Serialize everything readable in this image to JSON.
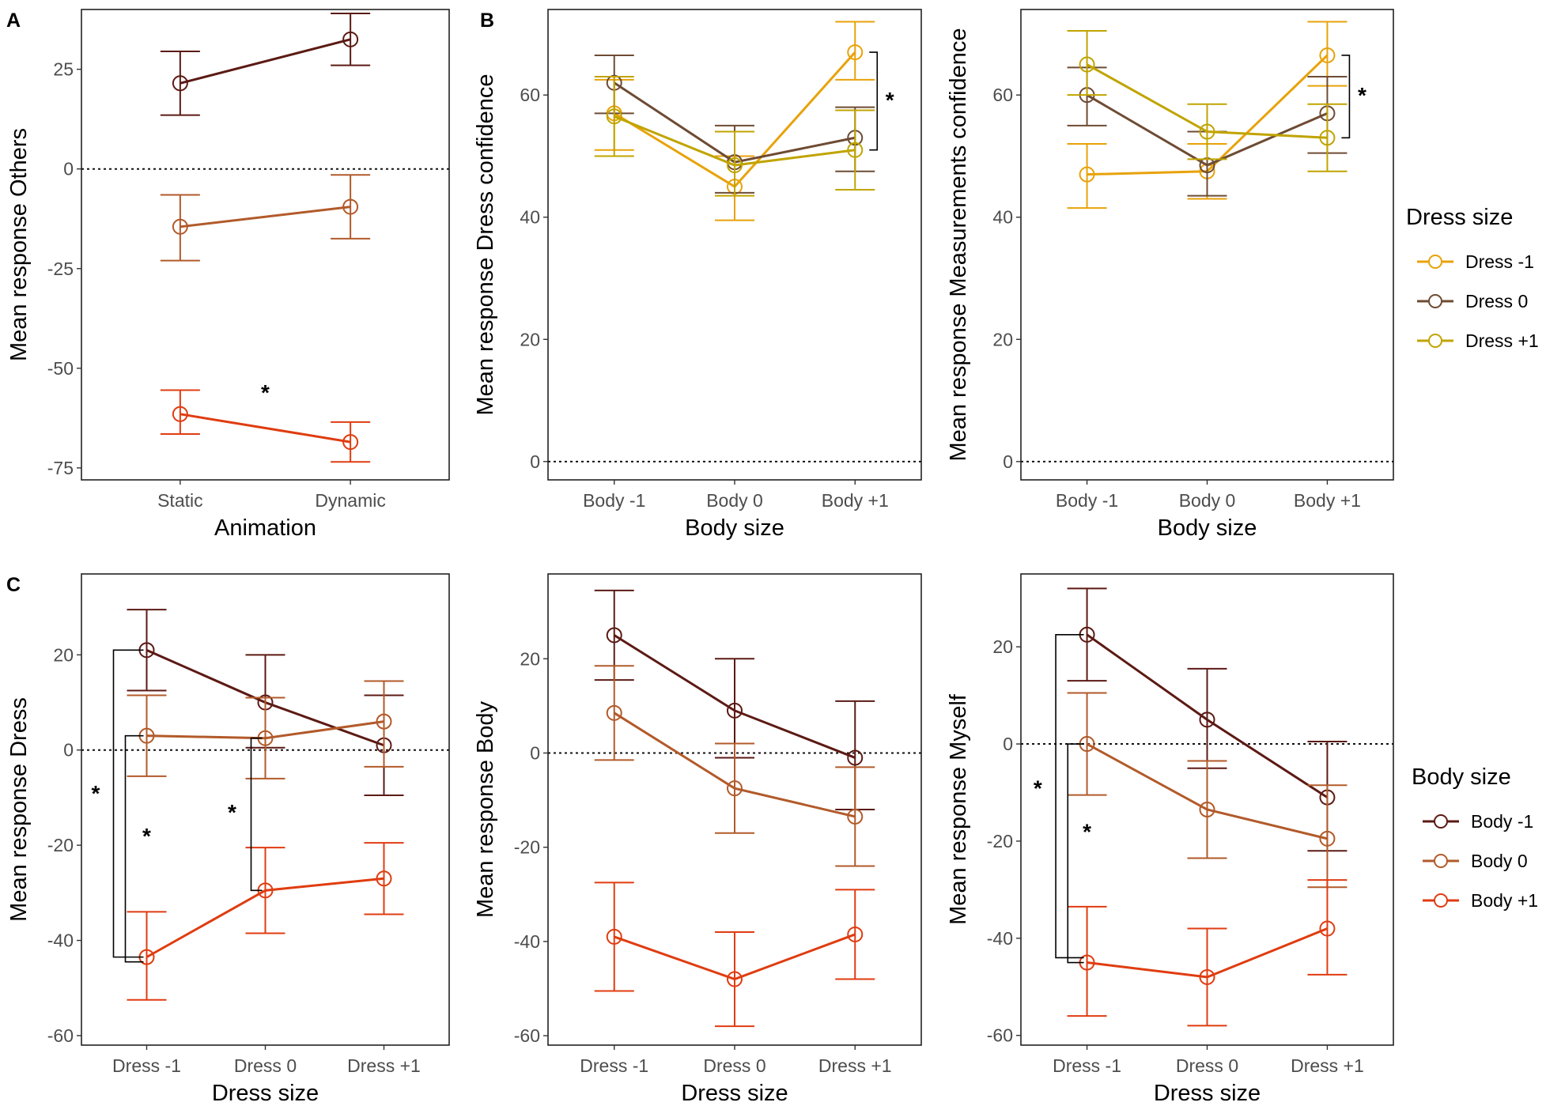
{
  "colors": {
    "dress_minus1": "#E8A20A",
    "dress_0": "#6E4B33",
    "dress_plus1": "#C0A400",
    "body_minus1": "#5C1A14",
    "body_0": "#B25A2A",
    "body_plus1": "#E03C10"
  },
  "legends": [
    {
      "id": "dress",
      "title": "Dress size",
      "items": [
        {
          "label": "Dress -1",
          "color_key": "dress_minus1"
        },
        {
          "label": "Dress 0",
          "color_key": "dress_0"
        },
        {
          "label": "Dress +1",
          "color_key": "dress_plus1"
        }
      ]
    },
    {
      "id": "body",
      "title": "Body size",
      "items": [
        {
          "label": "Body -1",
          "color_key": "body_minus1"
        },
        {
          "label": "Body 0",
          "color_key": "body_0"
        },
        {
          "label": "Body +1",
          "color_key": "body_plus1"
        }
      ]
    }
  ],
  "chart_data": [
    {
      "id": "A",
      "panel_label": "A",
      "type": "line",
      "xlabel": "Animation",
      "ylabel": "Mean response Others",
      "categories": [
        "Static",
        "Dynamic"
      ],
      "ylim": [
        -78,
        40
      ],
      "yticks": [
        25,
        0,
        -25,
        -50,
        -75
      ],
      "series": [
        {
          "name": "Body -1",
          "color_key": "body_minus1",
          "values": [
            21.5,
            32.5
          ],
          "err_low": [
            13.5,
            26
          ],
          "err_high": [
            29.5,
            39
          ]
        },
        {
          "name": "Body 0",
          "color_key": "body_0",
          "values": [
            -14.5,
            -9.5
          ],
          "err_low": [
            -23,
            -17.5
          ],
          "err_high": [
            -6.5,
            -1.5
          ]
        },
        {
          "name": "Body +1",
          "color_key": "body_plus1",
          "values": [
            -61.5,
            -68.5
          ],
          "err_low": [
            -66.5,
            -73.5
          ],
          "err_high": [
            -55.5,
            -63.5
          ]
        }
      ],
      "annotations": [
        {
          "text": "*",
          "kind": "star",
          "x": 0.5,
          "y": -56
        }
      ]
    },
    {
      "id": "B1",
      "panel_label": "B",
      "type": "line",
      "xlabel": "Body size",
      "ylabel": "Mean response Dress confidence",
      "categories": [
        "Body -1",
        "Body 0",
        "Body +1"
      ],
      "ylim": [
        -3,
        74
      ],
      "yticks": [
        60,
        40,
        20,
        0
      ],
      "series": [
        {
          "name": "Dress -1",
          "color_key": "dress_minus1",
          "values": [
            57,
            45,
            67
          ],
          "err_low": [
            51,
            39.5,
            62.5
          ],
          "err_high": [
            62.5,
            50,
            72
          ]
        },
        {
          "name": "Dress 0",
          "color_key": "dress_0",
          "values": [
            62,
            49,
            53
          ],
          "err_low": [
            57,
            44,
            47.5
          ],
          "err_high": [
            66.5,
            55,
            58
          ]
        },
        {
          "name": "Dress +1",
          "color_key": "dress_plus1",
          "values": [
            56.5,
            48.5,
            51
          ],
          "err_low": [
            50,
            43.5,
            44.5
          ],
          "err_high": [
            63,
            54,
            57.5
          ]
        }
      ],
      "annotations": [
        {
          "text": "*",
          "kind": "bracket",
          "x": 2,
          "y1": 67,
          "y2": 51
        }
      ]
    },
    {
      "id": "B2",
      "panel_label": "",
      "type": "line",
      "xlabel": "Body size",
      "ylabel": "Mean response Measurements confidence",
      "categories": [
        "Body -1",
        "Body 0",
        "Body +1"
      ],
      "ylim": [
        -3,
        74
      ],
      "yticks": [
        60,
        40,
        20,
        0
      ],
      "series": [
        {
          "name": "Dress -1",
          "color_key": "dress_minus1",
          "values": [
            47,
            47.5,
            66.5
          ],
          "err_low": [
            41.5,
            43,
            61.5
          ],
          "err_high": [
            52,
            52,
            72
          ]
        },
        {
          "name": "Dress 0",
          "color_key": "dress_0",
          "values": [
            60,
            48.5,
            57
          ],
          "err_low": [
            55,
            43.5,
            50.5
          ],
          "err_high": [
            64.5,
            54,
            63
          ]
        },
        {
          "name": "Dress +1",
          "color_key": "dress_plus1",
          "values": [
            65,
            54,
            53
          ],
          "err_low": [
            60,
            49.5,
            47.5
          ],
          "err_high": [
            70.5,
            58.5,
            58.5
          ]
        }
      ],
      "annotations": [
        {
          "text": "*",
          "kind": "bracket",
          "x": 2,
          "y1": 66.5,
          "y2": 53
        }
      ]
    },
    {
      "id": "C1",
      "panel_label": "C",
      "type": "line",
      "xlabel": "Dress size",
      "ylabel": "Mean response Dress",
      "categories": [
        "Dress -1",
        "Dress 0",
        "Dress +1"
      ],
      "ylim": [
        -62,
        37
      ],
      "yticks": [
        20,
        0,
        -20,
        -40,
        -60
      ],
      "series": [
        {
          "name": "Body -1",
          "color_key": "body_minus1",
          "values": [
            21,
            10,
            1
          ],
          "err_low": [
            12.5,
            0.5,
            -9.5
          ],
          "err_high": [
            29.5,
            20,
            11.5
          ]
        },
        {
          "name": "Body 0",
          "color_key": "body_0",
          "values": [
            3,
            2.5,
            6
          ],
          "err_low": [
            -5.5,
            -6,
            -3.5
          ],
          "err_high": [
            11.5,
            11,
            14.5
          ]
        },
        {
          "name": "Body +1",
          "color_key": "body_plus1",
          "values": [
            -43.5,
            -29.5,
            -27
          ],
          "err_low": [
            -52.5,
            -38.5,
            -34.5
          ],
          "err_high": [
            -34,
            -20.5,
            -19.5
          ]
        }
      ],
      "annotations": [
        {
          "text": "*",
          "kind": "side-bracket",
          "x": 0,
          "offset": -0.28,
          "y1": 21,
          "y2": -43.5,
          "label_offset": -0.43,
          "label_y": -9
        },
        {
          "text": "*",
          "kind": "side-bracket",
          "x": 0,
          "offset": -0.18,
          "y1": 3,
          "y2": -44.5,
          "label_offset": -0.0,
          "label_y": -18
        },
        {
          "text": "*",
          "kind": "side-bracket",
          "x": 1,
          "offset": -0.12,
          "y1": 2.5,
          "y2": -29.5,
          "label_offset": -0.28,
          "label_y": -13
        }
      ]
    },
    {
      "id": "C2",
      "panel_label": "",
      "type": "line",
      "xlabel": "Dress size",
      "ylabel": "Mean response Body",
      "categories": [
        "Dress -1",
        "Dress 0",
        "Dress +1"
      ],
      "ylim": [
        -62,
        38
      ],
      "yticks": [
        20,
        0,
        -20,
        -40,
        -60
      ],
      "series": [
        {
          "name": "Body -1",
          "color_key": "body_minus1",
          "values": [
            25,
            9,
            -1
          ],
          "err_low": [
            15.5,
            -1,
            -12
          ],
          "err_high": [
            34.5,
            20,
            11
          ]
        },
        {
          "name": "Body 0",
          "color_key": "body_0",
          "values": [
            8.5,
            -7.5,
            -13.5
          ],
          "err_low": [
            -1.5,
            -17,
            -24
          ],
          "err_high": [
            18.5,
            2,
            -3
          ]
        },
        {
          "name": "Body +1",
          "color_key": "body_plus1",
          "values": [
            -39,
            -48,
            -38.5
          ],
          "err_low": [
            -50.5,
            -58,
            -48
          ],
          "err_high": [
            -27.5,
            -38,
            -29
          ]
        }
      ],
      "annotations": []
    },
    {
      "id": "C3",
      "panel_label": "",
      "type": "line",
      "xlabel": "Dress size",
      "ylabel": "Mean response Myself",
      "categories": [
        "Dress -1",
        "Dress 0",
        "Dress +1"
      ],
      "ylim": [
        -62,
        35
      ],
      "yticks": [
        20,
        0,
        -20,
        -40,
        -60
      ],
      "series": [
        {
          "name": "Body -1",
          "color_key": "body_minus1",
          "values": [
            22.5,
            5,
            -11
          ],
          "err_low": [
            13,
            -5,
            -22
          ],
          "err_high": [
            32,
            15.5,
            0.5
          ]
        },
        {
          "name": "Body 0",
          "color_key": "body_0",
          "values": [
            0,
            -13.5,
            -19.5
          ],
          "err_low": [
            -10.5,
            -23.5,
            -29.5
          ],
          "err_high": [
            10.5,
            -3.5,
            -8.5
          ]
        },
        {
          "name": "Body +1",
          "color_key": "body_plus1",
          "values": [
            -45,
            -48,
            -38
          ],
          "err_low": [
            -56,
            -58,
            -47.5
          ],
          "err_high": [
            -33.5,
            -38,
            -28
          ]
        }
      ],
      "annotations": [
        {
          "text": "*",
          "kind": "side-bracket",
          "x": 0,
          "offset": -0.26,
          "y1": 22.5,
          "y2": -44,
          "label_offset": -0.41,
          "label_y": -9
        },
        {
          "text": "*",
          "kind": "side-bracket",
          "x": 0,
          "offset": -0.16,
          "y1": 0,
          "y2": -45,
          "label_offset": -0.0,
          "label_y": -18
        }
      ]
    }
  ]
}
